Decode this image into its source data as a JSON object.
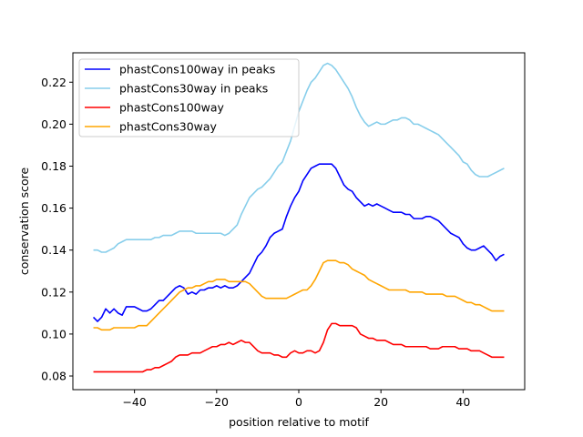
{
  "chart_data": {
    "type": "line",
    "title": "",
    "xlabel": "position relative to motif",
    "ylabel": "conservation score",
    "xlim": [
      -55,
      55
    ],
    "ylim": [
      0.0735,
      0.234
    ],
    "xticks": [
      -40,
      -20,
      0,
      20,
      40
    ],
    "xtick_labels": [
      "−40",
      "−20",
      "0",
      "20",
      "40"
    ],
    "yticks": [
      0.08,
      0.1,
      0.12,
      0.14,
      0.16,
      0.18,
      0.2,
      0.22
    ],
    "ytick_labels": [
      "0.08",
      "0.10",
      "0.12",
      "0.14",
      "0.16",
      "0.18",
      "0.20",
      "0.22"
    ],
    "grid": false,
    "legend": "top-left",
    "series": [
      {
        "name": "phastCons100way in peaks",
        "color": "#0000ff",
        "x": [
          -50,
          -49,
          -48,
          -47,
          -46,
          -45,
          -44,
          -43,
          -42,
          -41,
          -40,
          -39,
          -38,
          -37,
          -36,
          -35,
          -34,
          -33,
          -32,
          -31,
          -30,
          -29,
          -28,
          -27,
          -26,
          -25,
          -24,
          -23,
          -22,
          -21,
          -20,
          -19,
          -18,
          -17,
          -16,
          -15,
          -14,
          -13,
          -12,
          -11,
          -10,
          -9,
          -8,
          -7,
          -6,
          -5,
          -4,
          -3,
          -2,
          -1,
          0,
          1,
          2,
          3,
          4,
          5,
          6,
          7,
          8,
          9,
          10,
          11,
          12,
          13,
          14,
          15,
          16,
          17,
          18,
          19,
          20,
          21,
          22,
          23,
          24,
          25,
          26,
          27,
          28,
          29,
          30,
          31,
          32,
          33,
          34,
          35,
          36,
          37,
          38,
          39,
          40,
          41,
          42,
          43,
          44,
          45,
          46,
          47,
          48,
          49,
          50
        ],
        "y": [
          0.108,
          0.106,
          0.108,
          0.112,
          0.11,
          0.112,
          0.11,
          0.109,
          0.113,
          0.113,
          0.113,
          0.112,
          0.111,
          0.111,
          0.112,
          0.114,
          0.116,
          0.116,
          0.118,
          0.12,
          0.122,
          0.123,
          0.122,
          0.119,
          0.12,
          0.119,
          0.121,
          0.121,
          0.122,
          0.122,
          0.123,
          0.122,
          0.123,
          0.122,
          0.122,
          0.123,
          0.125,
          0.127,
          0.129,
          0.133,
          0.137,
          0.139,
          0.142,
          0.146,
          0.148,
          0.149,
          0.15,
          0.156,
          0.161,
          0.165,
          0.168,
          0.173,
          0.176,
          0.179,
          0.18,
          0.181,
          0.181,
          0.181,
          0.181,
          0.179,
          0.175,
          0.171,
          0.169,
          0.168,
          0.165,
          0.163,
          0.161,
          0.162,
          0.161,
          0.162,
          0.161,
          0.16,
          0.159,
          0.158,
          0.158,
          0.158,
          0.157,
          0.157,
          0.155,
          0.155,
          0.155,
          0.156,
          0.156,
          0.155,
          0.154,
          0.152,
          0.15,
          0.148,
          0.147,
          0.146,
          0.143,
          0.141,
          0.14,
          0.14,
          0.141,
          0.142,
          0.14,
          0.138,
          0.135,
          0.137,
          0.138
        ]
      },
      {
        "name": "phastCons30way in peaks",
        "color": "#87ceeb",
        "x": [
          -50,
          -49,
          -48,
          -47,
          -46,
          -45,
          -44,
          -43,
          -42,
          -41,
          -40,
          -39,
          -38,
          -37,
          -36,
          -35,
          -34,
          -33,
          -32,
          -31,
          -30,
          -29,
          -28,
          -27,
          -26,
          -25,
          -24,
          -23,
          -22,
          -21,
          -20,
          -19,
          -18,
          -17,
          -16,
          -15,
          -14,
          -13,
          -12,
          -11,
          -10,
          -9,
          -8,
          -7,
          -6,
          -5,
          -4,
          -3,
          -2,
          -1,
          0,
          1,
          2,
          3,
          4,
          5,
          6,
          7,
          8,
          9,
          10,
          11,
          12,
          13,
          14,
          15,
          16,
          17,
          18,
          19,
          20,
          21,
          22,
          23,
          24,
          25,
          26,
          27,
          28,
          29,
          30,
          31,
          32,
          33,
          34,
          35,
          36,
          37,
          38,
          39,
          40,
          41,
          42,
          43,
          44,
          45,
          46,
          47,
          48,
          49,
          50
        ],
        "y": [
          0.14,
          0.14,
          0.139,
          0.139,
          0.14,
          0.141,
          0.143,
          0.144,
          0.145,
          0.145,
          0.145,
          0.145,
          0.145,
          0.145,
          0.145,
          0.146,
          0.146,
          0.147,
          0.147,
          0.147,
          0.148,
          0.149,
          0.149,
          0.149,
          0.149,
          0.148,
          0.148,
          0.148,
          0.148,
          0.148,
          0.148,
          0.148,
          0.147,
          0.148,
          0.15,
          0.152,
          0.157,
          0.161,
          0.165,
          0.167,
          0.169,
          0.17,
          0.172,
          0.174,
          0.177,
          0.18,
          0.182,
          0.187,
          0.192,
          0.199,
          0.206,
          0.211,
          0.216,
          0.22,
          0.222,
          0.225,
          0.228,
          0.229,
          0.228,
          0.226,
          0.223,
          0.22,
          0.217,
          0.213,
          0.208,
          0.204,
          0.201,
          0.199,
          0.2,
          0.201,
          0.2,
          0.2,
          0.201,
          0.202,
          0.202,
          0.203,
          0.203,
          0.202,
          0.2,
          0.2,
          0.199,
          0.198,
          0.197,
          0.196,
          0.195,
          0.193,
          0.191,
          0.189,
          0.187,
          0.185,
          0.182,
          0.181,
          0.178,
          0.176,
          0.175,
          0.175,
          0.175,
          0.176,
          0.177,
          0.178,
          0.179
        ]
      },
      {
        "name": "phastCons100way",
        "color": "#ff0000",
        "x": [
          -50,
          -49,
          -48,
          -47,
          -46,
          -45,
          -44,
          -43,
          -42,
          -41,
          -40,
          -39,
          -38,
          -37,
          -36,
          -35,
          -34,
          -33,
          -32,
          -31,
          -30,
          -29,
          -28,
          -27,
          -26,
          -25,
          -24,
          -23,
          -22,
          -21,
          -20,
          -19,
          -18,
          -17,
          -16,
          -15,
          -14,
          -13,
          -12,
          -11,
          -10,
          -9,
          -8,
          -7,
          -6,
          -5,
          -4,
          -3,
          -2,
          -1,
          0,
          1,
          2,
          3,
          4,
          5,
          6,
          7,
          8,
          9,
          10,
          11,
          12,
          13,
          14,
          15,
          16,
          17,
          18,
          19,
          20,
          21,
          22,
          23,
          24,
          25,
          26,
          27,
          28,
          29,
          30,
          31,
          32,
          33,
          34,
          35,
          36,
          37,
          38,
          39,
          40,
          41,
          42,
          43,
          44,
          45,
          46,
          47,
          48,
          49,
          50
        ],
        "y": [
          0.082,
          0.082,
          0.082,
          0.082,
          0.082,
          0.082,
          0.082,
          0.082,
          0.082,
          0.082,
          0.082,
          0.082,
          0.082,
          0.083,
          0.083,
          0.084,
          0.084,
          0.085,
          0.086,
          0.087,
          0.089,
          0.09,
          0.09,
          0.09,
          0.091,
          0.091,
          0.091,
          0.092,
          0.093,
          0.094,
          0.094,
          0.095,
          0.095,
          0.096,
          0.095,
          0.096,
          0.097,
          0.096,
          0.096,
          0.094,
          0.092,
          0.091,
          0.091,
          0.091,
          0.09,
          0.09,
          0.089,
          0.089,
          0.091,
          0.092,
          0.091,
          0.091,
          0.092,
          0.092,
          0.091,
          0.092,
          0.096,
          0.102,
          0.105,
          0.105,
          0.104,
          0.104,
          0.104,
          0.104,
          0.103,
          0.1,
          0.099,
          0.098,
          0.098,
          0.097,
          0.097,
          0.097,
          0.096,
          0.095,
          0.095,
          0.095,
          0.094,
          0.094,
          0.094,
          0.094,
          0.094,
          0.094,
          0.093,
          0.093,
          0.093,
          0.094,
          0.094,
          0.094,
          0.094,
          0.093,
          0.093,
          0.093,
          0.092,
          0.092,
          0.092,
          0.091,
          0.09,
          0.089,
          0.089,
          0.089,
          0.089
        ]
      },
      {
        "name": "phastCons30way",
        "color": "#ffa500",
        "x": [
          -50,
          -49,
          -48,
          -47,
          -46,
          -45,
          -44,
          -43,
          -42,
          -41,
          -40,
          -39,
          -38,
          -37,
          -36,
          -35,
          -34,
          -33,
          -32,
          -31,
          -30,
          -29,
          -28,
          -27,
          -26,
          -25,
          -24,
          -23,
          -22,
          -21,
          -20,
          -19,
          -18,
          -17,
          -16,
          -15,
          -14,
          -13,
          -12,
          -11,
          -10,
          -9,
          -8,
          -7,
          -6,
          -5,
          -4,
          -3,
          -2,
          -1,
          0,
          1,
          2,
          3,
          4,
          5,
          6,
          7,
          8,
          9,
          10,
          11,
          12,
          13,
          14,
          15,
          16,
          17,
          18,
          19,
          20,
          21,
          22,
          23,
          24,
          25,
          26,
          27,
          28,
          29,
          30,
          31,
          32,
          33,
          34,
          35,
          36,
          37,
          38,
          39,
          40,
          41,
          42,
          43,
          44,
          45,
          46,
          47,
          48,
          49,
          50
        ],
        "y": [
          0.103,
          0.103,
          0.102,
          0.102,
          0.102,
          0.103,
          0.103,
          0.103,
          0.103,
          0.103,
          0.103,
          0.104,
          0.104,
          0.104,
          0.106,
          0.108,
          0.11,
          0.112,
          0.114,
          0.116,
          0.118,
          0.12,
          0.121,
          0.122,
          0.122,
          0.123,
          0.123,
          0.124,
          0.125,
          0.125,
          0.126,
          0.126,
          0.126,
          0.125,
          0.125,
          0.125,
          0.125,
          0.125,
          0.124,
          0.122,
          0.12,
          0.118,
          0.117,
          0.117,
          0.117,
          0.117,
          0.117,
          0.117,
          0.118,
          0.119,
          0.12,
          0.121,
          0.121,
          0.123,
          0.126,
          0.13,
          0.134,
          0.135,
          0.135,
          0.135,
          0.134,
          0.134,
          0.133,
          0.131,
          0.13,
          0.129,
          0.128,
          0.126,
          0.125,
          0.124,
          0.123,
          0.122,
          0.121,
          0.121,
          0.121,
          0.121,
          0.121,
          0.12,
          0.12,
          0.12,
          0.12,
          0.119,
          0.119,
          0.119,
          0.119,
          0.119,
          0.118,
          0.118,
          0.118,
          0.117,
          0.116,
          0.115,
          0.115,
          0.114,
          0.114,
          0.113,
          0.112,
          0.111,
          0.111,
          0.111,
          0.111
        ]
      }
    ]
  }
}
